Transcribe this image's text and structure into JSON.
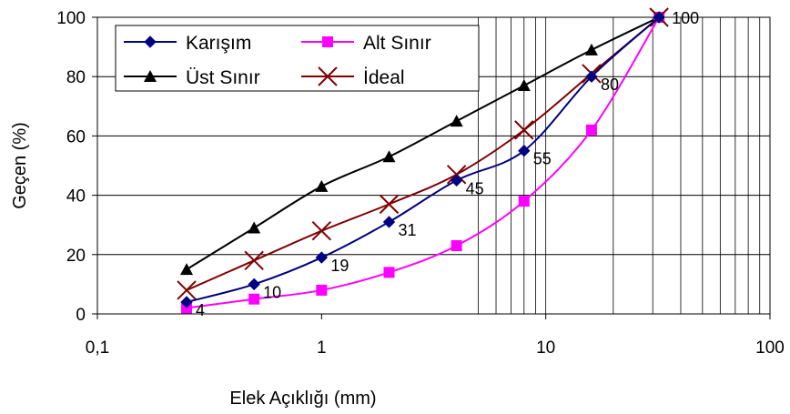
{
  "chart_data": {
    "type": "line",
    "xlabel": "Elek Açıklığı (mm)",
    "ylabel": "Geçen (%)",
    "xscale": "log",
    "xlim": [
      0.1,
      100
    ],
    "ylim": [
      0,
      100
    ],
    "x_ticks": [
      0.1,
      1,
      10,
      100
    ],
    "x_tick_labels": [
      "0,1",
      "1",
      "10",
      "100"
    ],
    "y_ticks": [
      0,
      20,
      40,
      60,
      80,
      100
    ],
    "y_tick_labels": [
      "0",
      "20",
      "40",
      "60",
      "80",
      "100"
    ],
    "grid": "horizontal major lines, vertical log minor lines from 5 to 100",
    "legend_position": "top-left",
    "series": [
      {
        "name": "Karışım",
        "color": "#000080",
        "marker": "diamond",
        "x": [
          0.25,
          0.5,
          1,
          2,
          4,
          8,
          16,
          32
        ],
        "y": [
          4,
          10,
          19,
          31,
          45,
          55,
          80,
          100
        ],
        "labels": [
          "4",
          "10",
          "19",
          "31",
          "45",
          "55",
          "80",
          "100"
        ]
      },
      {
        "name": "Alt Sınır",
        "color": "#ff00ff",
        "marker": "square",
        "x": [
          0.25,
          0.5,
          1,
          2,
          4,
          8,
          16,
          32
        ],
        "y": [
          2,
          5,
          8,
          14,
          23,
          38,
          62,
          100
        ]
      },
      {
        "name": "Üst Sınır",
        "color": "#000000",
        "marker": "triangle",
        "x": [
          0.25,
          0.5,
          1,
          2,
          4,
          8,
          16,
          32
        ],
        "y": [
          15,
          29,
          43,
          53,
          65,
          77,
          89,
          100
        ]
      },
      {
        "name": "İdeal",
        "color": "#800000",
        "marker": "x",
        "x": [
          0.25,
          0.5,
          1,
          2,
          4,
          8,
          16,
          32
        ],
        "y": [
          8,
          18,
          28,
          37,
          47,
          62,
          81,
          100
        ]
      }
    ]
  }
}
